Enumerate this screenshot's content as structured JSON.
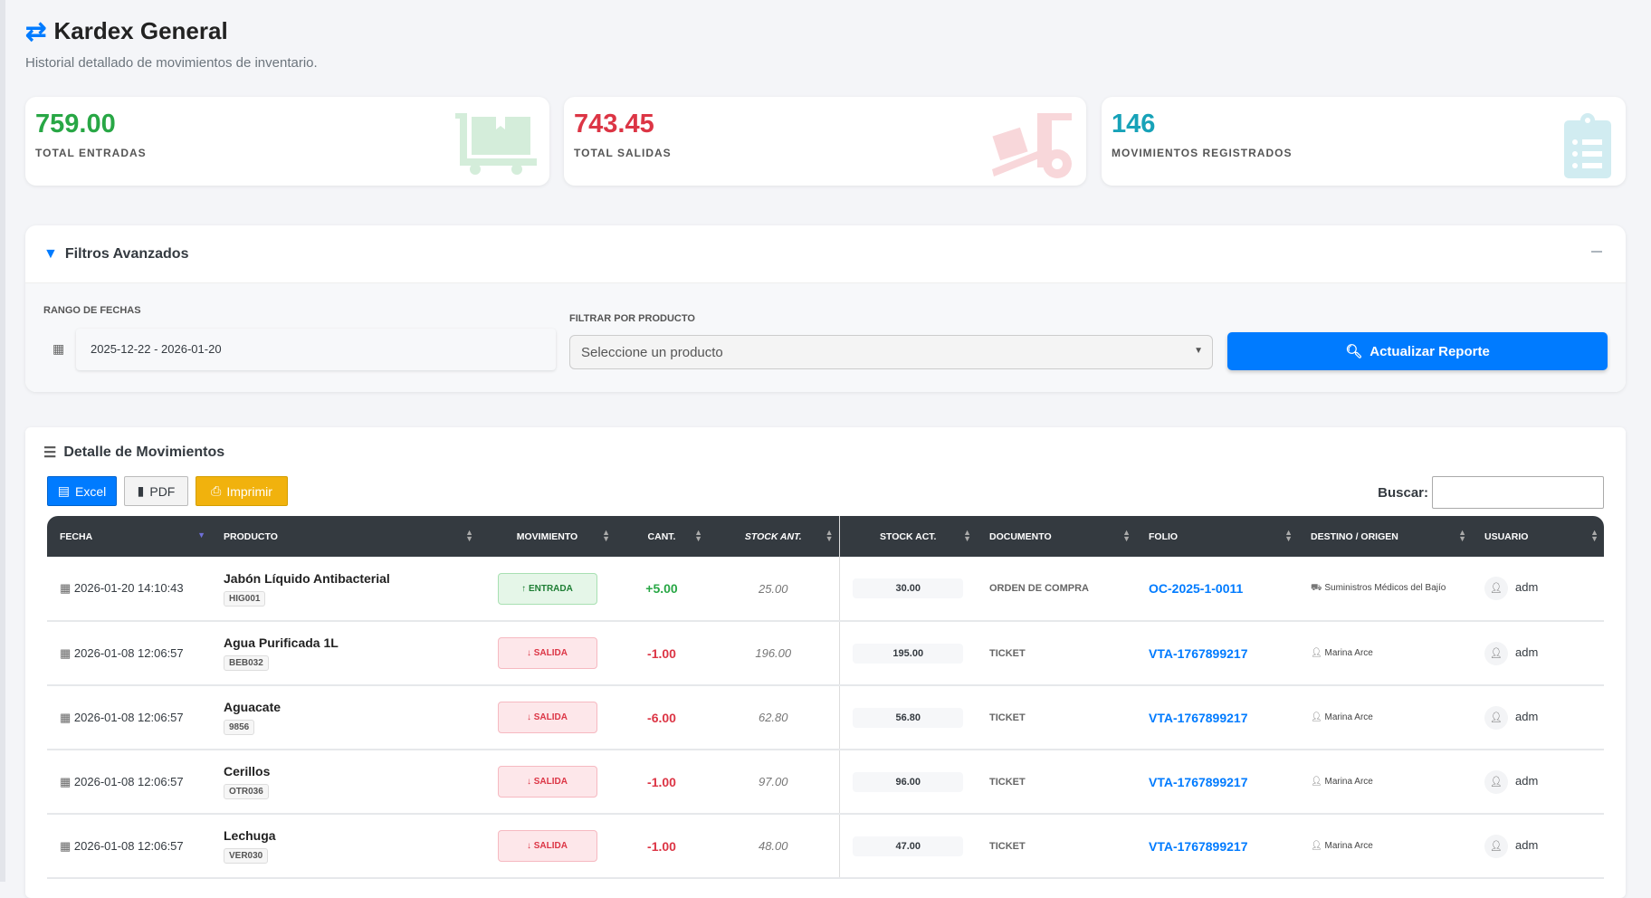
{
  "header": {
    "title": "Kardex General",
    "subtitle": "Historial detallado de movimientos de inventario."
  },
  "stats": [
    {
      "value": "759.00",
      "label": "TOTAL ENTRADAS",
      "color": "#28a745",
      "icon": "dolly-flatbed-icon"
    },
    {
      "value": "743.45",
      "label": "TOTAL SALIDAS",
      "color": "#dc3545",
      "icon": "dolly-icon"
    },
    {
      "value": "146",
      "label": "MOVIMIENTOS REGISTRADOS",
      "color": "#17a2b8",
      "icon": "clipboard-list-icon"
    }
  ],
  "filters": {
    "title": "Filtros Avanzados",
    "date_label": "RANGO DE FECHAS",
    "date_value": "2025-12-22 - 2026-01-20",
    "product_label": "FILTRAR POR PRODUCTO",
    "product_placeholder": "Seleccione un producto",
    "update_button": "Actualizar Reporte"
  },
  "detail": {
    "title": "Detalle de Movimientos",
    "excel": "Excel",
    "pdf": "PDF",
    "print": "Imprimir",
    "search_label": "Buscar:"
  },
  "columns": [
    "FECHA",
    "PRODUCTO",
    "MOVIMIENTO",
    "CANT.",
    "STOCK ANT.",
    "STOCK ACT.",
    "DOCUMENTO",
    "FOLIO",
    "DESTINO / ORIGEN",
    "USUARIO"
  ],
  "rows": [
    {
      "fecha": "2026-01-20 14:10:43",
      "producto": "Jabón Líquido Antibacterial",
      "codigo": "HIG001",
      "movimiento": "ENTRADA",
      "cant": "+5.00",
      "stock_ant": "25.00",
      "stock_act": "30.00",
      "documento": "ORDEN DE COMPRA",
      "folio": "OC-2025-1-0011",
      "destino": "Suministros Médicos del Bajío",
      "usuario": "adm"
    },
    {
      "fecha": "2026-01-08 12:06:57",
      "producto": "Agua Purificada 1L",
      "codigo": "BEB032",
      "movimiento": "SALIDA",
      "cant": "-1.00",
      "stock_ant": "196.00",
      "stock_act": "195.00",
      "documento": "TICKET",
      "folio": "VTA-1767899217",
      "destino": "Marina Arce",
      "usuario": "adm"
    },
    {
      "fecha": "2026-01-08 12:06:57",
      "producto": "Aguacate",
      "codigo": "9856",
      "movimiento": "SALIDA",
      "cant": "-6.00",
      "stock_ant": "62.80",
      "stock_act": "56.80",
      "documento": "TICKET",
      "folio": "VTA-1767899217",
      "destino": "Marina Arce",
      "usuario": "adm"
    },
    {
      "fecha": "2026-01-08 12:06:57",
      "producto": "Cerillos",
      "codigo": "OTR036",
      "movimiento": "SALIDA",
      "cant": "-1.00",
      "stock_ant": "97.00",
      "stock_act": "96.00",
      "documento": "TICKET",
      "folio": "VTA-1767899217",
      "destino": "Marina Arce",
      "usuario": "adm"
    },
    {
      "fecha": "2026-01-08 12:06:57",
      "producto": "Lechuga",
      "codigo": "VER030",
      "movimiento": "SALIDA",
      "cant": "-1.00",
      "stock_ant": "48.00",
      "stock_act": "47.00",
      "documento": "TICKET",
      "folio": "VTA-1767899217",
      "destino": "Marina Arce",
      "usuario": "adm"
    }
  ]
}
